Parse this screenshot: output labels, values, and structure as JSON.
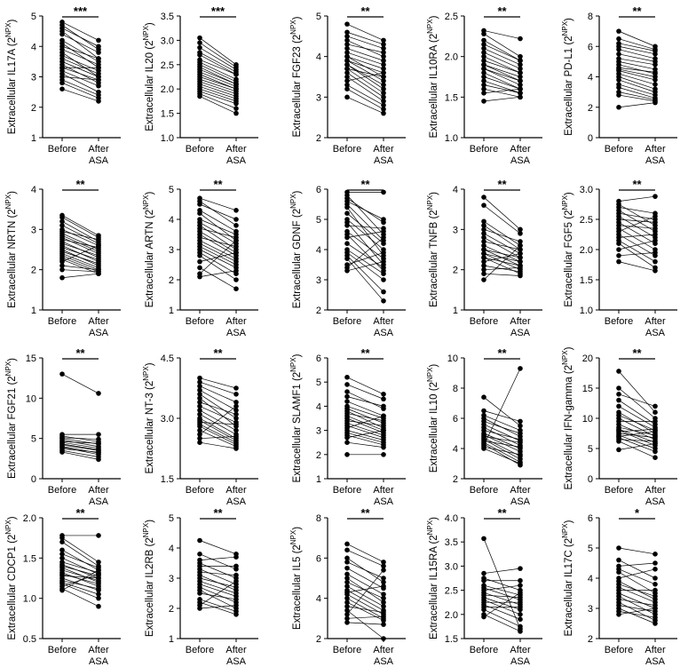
{
  "figure": {
    "background": "#ffffff",
    "ink": "#000000"
  },
  "chart_data": [
    {
      "id": "IL17A",
      "type": "paired-dot",
      "prefix": "Extracellular IL17A",
      "ylim": [
        1,
        5
      ],
      "yticks": [
        "1",
        "2",
        "3",
        "4",
        "5"
      ],
      "categories": [
        "Before",
        "After ASA"
      ],
      "sig": "***",
      "before": [
        4.8,
        4.7,
        4.6,
        4.5,
        4.4,
        4.2,
        4.1,
        4.0,
        3.9,
        3.8,
        3.7,
        3.6,
        3.5,
        3.4,
        3.3,
        3.3,
        3.2,
        3.1,
        3.0,
        2.9,
        2.8,
        2.6
      ],
      "after": [
        4.2,
        3.9,
        4.0,
        3.6,
        3.8,
        3.5,
        3.3,
        3.6,
        3.4,
        3.0,
        3.2,
        3.1,
        3.0,
        2.8,
        3.3,
        2.9,
        2.7,
        2.5,
        2.9,
        2.4,
        2.3,
        2.2
      ]
    },
    {
      "id": "IL20",
      "type": "paired-dot",
      "prefix": "Extracellular IL20",
      "ylim": [
        1.0,
        3.5
      ],
      "yticks": [
        "1.0",
        "1.5",
        "2.0",
        "2.5",
        "3.0",
        "3.5"
      ],
      "categories": [
        "Before",
        "After ASA"
      ],
      "sig": "***",
      "before": [
        3.05,
        2.95,
        2.85,
        2.75,
        2.7,
        2.6,
        2.55,
        2.5,
        2.45,
        2.4,
        2.35,
        2.3,
        2.25,
        2.2,
        2.15,
        2.1,
        2.05,
        2.0,
        1.95,
        1.9,
        1.85
      ],
      "after": [
        2.5,
        2.45,
        2.4,
        2.35,
        2.3,
        2.3,
        2.2,
        2.15,
        2.1,
        2.1,
        2.05,
        2.0,
        2.0,
        1.95,
        1.9,
        1.85,
        1.8,
        1.75,
        1.7,
        1.6,
        1.5
      ]
    },
    {
      "id": "FGF23",
      "type": "paired-dot",
      "prefix": "Extracellular FGF23",
      "ylim": [
        2,
        5
      ],
      "yticks": [
        "2",
        "3",
        "4",
        "5"
      ],
      "categories": [
        "Before",
        "After ASA"
      ],
      "sig": "**",
      "before": [
        4.8,
        4.6,
        4.5,
        4.4,
        4.3,
        4.2,
        4.1,
        4.0,
        4.0,
        3.9,
        3.9,
        3.8,
        3.8,
        3.7,
        3.7,
        3.6,
        3.5,
        3.4,
        3.3,
        3.2,
        3.0
      ],
      "after": [
        4.4,
        4.3,
        4.2,
        4.0,
        4.1,
        3.9,
        3.8,
        3.7,
        3.5,
        3.6,
        3.4,
        3.3,
        3.2,
        3.5,
        3.1,
        3.0,
        2.9,
        3.6,
        2.8,
        2.7,
        2.6
      ]
    },
    {
      "id": "IL10RA",
      "type": "paired-dot",
      "prefix": "Extracellular IL10RA",
      "ylim": [
        1.0,
        2.5
      ],
      "yticks": [
        "1.0",
        "1.5",
        "2.0",
        "2.5"
      ],
      "categories": [
        "Before",
        "After ASA"
      ],
      "sig": "**",
      "before": [
        2.32,
        2.28,
        2.2,
        2.15,
        2.1,
        2.05,
        2.0,
        1.95,
        1.9,
        1.9,
        1.85,
        1.85,
        1.8,
        1.75,
        1.7,
        1.65,
        1.6,
        1.55,
        1.45
      ],
      "after": [
        2.22,
        2.0,
        1.95,
        1.95,
        1.9,
        1.85,
        1.8,
        1.8,
        1.75,
        1.7,
        1.7,
        1.65,
        1.6,
        1.6,
        1.55,
        1.55,
        1.5,
        1.6,
        1.5
      ]
    },
    {
      "id": "PD-L1",
      "type": "paired-dot",
      "prefix": "Extracellular PD-L1",
      "ylim": [
        0,
        8
      ],
      "yticks": [
        "0",
        "2",
        "4",
        "6",
        "8"
      ],
      "categories": [
        "Before",
        "After ASA"
      ],
      "sig": "**",
      "before": [
        7.0,
        6.5,
        6.2,
        6.0,
        5.8,
        5.5,
        5.2,
        5.0,
        4.8,
        4.6,
        4.5,
        4.4,
        4.2,
        4.0,
        3.8,
        3.5,
        3.3,
        3.0,
        2.8,
        2.0
      ],
      "after": [
        6.0,
        5.8,
        5.7,
        5.5,
        5.2,
        5.0,
        4.8,
        4.5,
        4.2,
        4.3,
        4.0,
        3.8,
        3.5,
        3.2,
        3.0,
        2.8,
        2.6,
        2.5,
        2.4,
        2.3
      ]
    },
    {
      "id": "NRTN",
      "type": "paired-dot",
      "prefix": "Extracellular NRTN",
      "ylim": [
        1,
        4
      ],
      "yticks": [
        "1",
        "2",
        "3",
        "4"
      ],
      "categories": [
        "Before",
        "After ASA"
      ],
      "sig": "**",
      "before": [
        3.35,
        3.3,
        3.2,
        3.1,
        3.0,
        2.95,
        2.9,
        2.85,
        2.8,
        2.75,
        2.7,
        2.65,
        2.6,
        2.55,
        2.5,
        2.45,
        2.4,
        2.35,
        2.3,
        2.25,
        2.2,
        2.1,
        2.0,
        1.8
      ],
      "after": [
        2.85,
        2.8,
        2.7,
        2.65,
        2.6,
        2.75,
        2.5,
        2.45,
        2.4,
        2.55,
        2.3,
        2.35,
        2.2,
        2.25,
        2.1,
        2.15,
        2.05,
        2.0,
        1.95,
        1.9,
        2.6,
        2.0,
        1.95,
        1.9
      ]
    },
    {
      "id": "ARTN",
      "type": "paired-dot",
      "prefix": "Extracellular ARTN",
      "ylim": [
        1,
        5
      ],
      "yticks": [
        "1",
        "2",
        "3",
        "4",
        "5"
      ],
      "categories": [
        "Before",
        "After ASA"
      ],
      "sig": "**",
      "before": [
        4.7,
        4.6,
        4.5,
        4.3,
        4.2,
        4.0,
        3.9,
        3.8,
        3.7,
        3.6,
        3.5,
        3.4,
        3.3,
        3.2,
        3.1,
        3.0,
        2.9,
        2.8,
        2.6,
        2.4,
        2.2,
        2.1
      ],
      "after": [
        4.3,
        3.8,
        4.0,
        3.6,
        3.3,
        3.5,
        3.2,
        3.0,
        3.4,
        2.9,
        2.8,
        3.1,
        2.7,
        2.6,
        2.5,
        2.4,
        2.2,
        2.0,
        2.9,
        1.7,
        3.3,
        2.3
      ]
    },
    {
      "id": "GDNF",
      "type": "paired-dot",
      "prefix": "Extracellular GDNF",
      "ylim": [
        2,
        6
      ],
      "yticks": [
        "2",
        "3",
        "4",
        "5",
        "6"
      ],
      "categories": [
        "Before",
        "After ASA"
      ],
      "sig": "**",
      "before": [
        5.9,
        5.8,
        5.7,
        5.6,
        5.5,
        5.4,
        5.2,
        5.0,
        4.9,
        4.8,
        4.6,
        4.5,
        4.4,
        4.2,
        4.0,
        3.9,
        3.8,
        3.7,
        3.5,
        3.4,
        3.3
      ],
      "after": [
        5.9,
        4.5,
        4.9,
        5.0,
        4.3,
        3.8,
        4.2,
        4.0,
        3.5,
        4.7,
        3.7,
        3.3,
        4.6,
        3.4,
        3.2,
        3.0,
        2.6,
        2.3,
        3.9,
        4.4,
        3.6
      ]
    },
    {
      "id": "TNFB",
      "type": "paired-dot",
      "prefix": "Extracellular TNFB",
      "ylim": [
        1,
        4
      ],
      "yticks": [
        "1",
        "2",
        "3",
        "4"
      ],
      "categories": [
        "Before",
        "After ASA"
      ],
      "sig": "**",
      "before": [
        3.8,
        3.6,
        3.2,
        3.1,
        3.0,
        2.9,
        2.8,
        2.7,
        2.6,
        2.5,
        2.5,
        2.4,
        2.4,
        2.3,
        2.3,
        2.2,
        2.1,
        2.0,
        1.9,
        1.75
      ],
      "after": [
        3.0,
        2.9,
        2.6,
        2.5,
        2.7,
        2.4,
        2.3,
        2.5,
        2.2,
        2.3,
        2.1,
        2.2,
        2.0,
        2.1,
        1.9,
        2.4,
        1.95,
        2.05,
        1.85,
        2.6
      ]
    },
    {
      "id": "FGF5",
      "type": "paired-dot",
      "prefix": "Extracellular FGF5",
      "ylim": [
        1.0,
        3.0
      ],
      "yticks": [
        "1.0",
        "1.5",
        "2.0",
        "2.5",
        "3.0"
      ],
      "categories": [
        "Before",
        "After ASA"
      ],
      "sig": "**",
      "before": [
        2.8,
        2.75,
        2.7,
        2.65,
        2.6,
        2.55,
        2.5,
        2.45,
        2.4,
        2.35,
        2.3,
        2.25,
        2.2,
        2.15,
        2.1,
        2.0,
        1.9,
        1.8
      ],
      "after": [
        2.88,
        2.4,
        2.6,
        2.3,
        2.5,
        2.2,
        2.45,
        2.1,
        2.35,
        2.0,
        2.55,
        1.9,
        2.25,
        1.8,
        1.7,
        2.15,
        1.95,
        1.65
      ]
    },
    {
      "id": "FGF21",
      "type": "paired-dot",
      "prefix": "Extracellular FGF21",
      "ylim": [
        0,
        15
      ],
      "yticks": [
        "0",
        "5",
        "10",
        "15"
      ],
      "categories": [
        "Before",
        "After ASA"
      ],
      "sig": "**",
      "before": [
        13.0,
        5.5,
        5.3,
        5.1,
        5.0,
        4.8,
        4.6,
        4.5,
        4.3,
        4.2,
        4.0,
        3.9,
        3.7,
        3.5,
        3.3
      ],
      "after": [
        10.6,
        5.5,
        4.6,
        4.9,
        4.3,
        4.0,
        4.4,
        3.8,
        3.6,
        3.5,
        3.2,
        3.0,
        3.3,
        2.7,
        2.4
      ]
    },
    {
      "id": "NT-3",
      "type": "paired-dot",
      "prefix": "Extracellular NT-3",
      "ylim": [
        1.5,
        4.5
      ],
      "yticks": [
        "1.5",
        "3.0",
        "4.5"
      ],
      "categories": [
        "Before",
        "After ASA"
      ],
      "sig": "**",
      "before": [
        4.0,
        3.9,
        3.8,
        3.7,
        3.6,
        3.5,
        3.4,
        3.3,
        3.2,
        3.1,
        3.0,
        2.95,
        2.9,
        2.85,
        2.8,
        2.7,
        2.6,
        2.5,
        2.4
      ],
      "after": [
        3.75,
        3.6,
        3.4,
        3.2,
        3.0,
        2.8,
        3.1,
        2.9,
        2.7,
        2.6,
        2.5,
        2.45,
        2.85,
        2.4,
        2.35,
        2.3,
        3.3,
        2.55,
        2.25
      ]
    },
    {
      "id": "SLAMF1",
      "type": "paired-dot",
      "prefix": "Extracellular SLAMF1",
      "ylim": [
        1,
        6
      ],
      "yticks": [
        "1",
        "2",
        "3",
        "4",
        "5",
        "6"
      ],
      "categories": [
        "Before",
        "After ASA"
      ],
      "sig": "**",
      "before": [
        5.2,
        4.9,
        4.6,
        4.4,
        4.2,
        4.0,
        3.9,
        3.8,
        3.7,
        3.6,
        3.5,
        3.4,
        3.3,
        3.2,
        3.1,
        3.0,
        2.9,
        2.8,
        2.7,
        2.5,
        2.0
      ],
      "after": [
        4.5,
        4.3,
        3.9,
        4.0,
        3.6,
        3.5,
        3.3,
        3.1,
        3.4,
        3.0,
        2.9,
        3.2,
        2.8,
        2.7,
        3.6,
        2.6,
        2.5,
        2.4,
        3.0,
        2.3,
        2.0
      ]
    },
    {
      "id": "IL10",
      "type": "paired-dot",
      "prefix": "Extracellular IL10",
      "ylim": [
        2,
        10
      ],
      "yticks": [
        "2",
        "4",
        "6",
        "8",
        "10"
      ],
      "categories": [
        "Before",
        "After ASA"
      ],
      "sig": "**",
      "before": [
        7.4,
        6.5,
        6.2,
        6.0,
        5.8,
        5.6,
        5.4,
        5.2,
        5.0,
        4.9,
        4.8,
        4.7,
        4.6,
        4.5,
        4.4,
        4.3,
        4.2,
        4.1,
        4.0
      ],
      "after": [
        5.5,
        5.8,
        5.2,
        4.8,
        5.0,
        4.5,
        4.2,
        4.6,
        4.0,
        3.8,
        4.4,
        3.5,
        3.3,
        4.1,
        3.1,
        2.9,
        9.3,
        3.6,
        3.0
      ]
    },
    {
      "id": "IFN-gamma",
      "type": "paired-dot",
      "prefix": "Extracellular IFN-gamma",
      "ylim": [
        0,
        20
      ],
      "yticks": [
        "0",
        "5",
        "10",
        "15",
        "20"
      ],
      "categories": [
        "Before",
        "After ASA"
      ],
      "sig": "**",
      "before": [
        17.8,
        15.0,
        14.0,
        13.0,
        12.0,
        11.0,
        10.5,
        10.0,
        9.5,
        9.0,
        8.5,
        8.2,
        8.0,
        7.8,
        7.5,
        7.2,
        7.0,
        6.8,
        6.5,
        6.2,
        4.8
      ],
      "after": [
        11.0,
        10.0,
        12.0,
        9.0,
        8.5,
        7.5,
        8.0,
        7.0,
        9.5,
        6.5,
        7.2,
        6.0,
        5.5,
        8.2,
        6.8,
        5.0,
        7.8,
        4.5,
        6.2,
        3.5,
        5.8
      ]
    },
    {
      "id": "CDCP1",
      "type": "paired-dot",
      "prefix": "Extracellular CDCP1",
      "ylim": [
        0.5,
        2.0
      ],
      "yticks": [
        "0.5",
        "1.0",
        "1.5",
        "2.0"
      ],
      "categories": [
        "Before",
        "After ASA"
      ],
      "sig": "**",
      "before": [
        1.78,
        1.75,
        1.7,
        1.6,
        1.55,
        1.5,
        1.45,
        1.42,
        1.4,
        1.38,
        1.35,
        1.32,
        1.3,
        1.28,
        1.25,
        1.22,
        1.2,
        1.18,
        1.15,
        1.12,
        1.1
      ],
      "after": [
        1.78,
        1.45,
        1.4,
        1.35,
        1.38,
        1.3,
        1.32,
        1.25,
        1.28,
        1.2,
        1.22,
        1.15,
        1.18,
        1.25,
        1.1,
        1.12,
        1.05,
        1.0,
        1.3,
        0.9,
        1.35
      ]
    },
    {
      "id": "IL2RB",
      "type": "paired-dot",
      "prefix": "Extracellular IL2RB",
      "ylim": [
        1,
        5
      ],
      "yticks": [
        "1",
        "2",
        "3",
        "4",
        "5"
      ],
      "categories": [
        "Before",
        "After ASA"
      ],
      "sig": "**",
      "before": [
        4.25,
        3.8,
        3.6,
        3.5,
        3.4,
        3.3,
        3.2,
        3.1,
        3.0,
        2.9,
        2.8,
        2.7,
        2.6,
        2.5,
        2.3,
        2.2,
        2.1,
        2.0
      ],
      "after": [
        3.8,
        3.3,
        3.7,
        3.0,
        3.4,
        2.8,
        3.1,
        2.6,
        2.7,
        2.5,
        2.4,
        2.2,
        2.0,
        2.3,
        1.9,
        1.8,
        2.9,
        2.1
      ]
    },
    {
      "id": "IL5",
      "type": "paired-dot",
      "prefix": "Extracellular IL5",
      "ylim": [
        2,
        8
      ],
      "yticks": [
        "2",
        "4",
        "6",
        "8"
      ],
      "categories": [
        "Before",
        "After ASA"
      ],
      "sig": "**",
      "before": [
        6.7,
        6.4,
        6.0,
        5.8,
        5.5,
        5.2,
        5.0,
        4.8,
        4.6,
        4.4,
        4.3,
        4.2,
        4.0,
        3.8,
        3.6,
        3.4,
        3.2,
        3.0,
        2.8
      ],
      "after": [
        5.8,
        5.6,
        4.8,
        5.0,
        4.5,
        4.2,
        3.8,
        4.0,
        3.6,
        3.4,
        4.6,
        3.2,
        3.0,
        2.9,
        3.3,
        2.0,
        5.4,
        3.1,
        2.7
      ]
    },
    {
      "id": "IL15RA",
      "type": "paired-dot",
      "prefix": "Extracellular IL15RA",
      "ylim": [
        1.5,
        4.0
      ],
      "yticks": [
        "1.5",
        "2.0",
        "2.5",
        "3.0",
        "3.5",
        "4.0"
      ],
      "categories": [
        "Before",
        "After ASA"
      ],
      "sig": "**",
      "before": [
        3.57,
        2.85,
        2.75,
        2.7,
        2.6,
        2.55,
        2.5,
        2.45,
        2.4,
        2.35,
        2.3,
        2.25,
        2.2,
        2.15,
        2.1,
        2.0,
        1.95
      ],
      "after": [
        1.7,
        2.95,
        2.5,
        2.7,
        2.4,
        2.3,
        2.6,
        2.2,
        2.35,
        2.1,
        2.0,
        2.25,
        1.9,
        2.15,
        1.75,
        1.65,
        2.45
      ]
    },
    {
      "id": "IL17C",
      "type": "paired-dot",
      "prefix": "Extracellular IL17C",
      "ylim": [
        2,
        6
      ],
      "yticks": [
        "2",
        "3",
        "4",
        "5",
        "6"
      ],
      "categories": [
        "Before",
        "After ASA"
      ],
      "sig": "*",
      "before": [
        5.0,
        4.6,
        4.4,
        4.3,
        4.2,
        4.0,
        3.9,
        3.8,
        3.7,
        3.6,
        3.5,
        3.4,
        3.3,
        3.2,
        3.1,
        3.0,
        2.9,
        2.8
      ],
      "after": [
        4.8,
        4.0,
        4.5,
        3.8,
        3.5,
        4.3,
        3.3,
        3.4,
        3.2,
        3.6,
        3.0,
        2.8,
        3.1,
        2.6,
        2.9,
        2.5,
        2.7,
        3.0
      ]
    }
  ]
}
